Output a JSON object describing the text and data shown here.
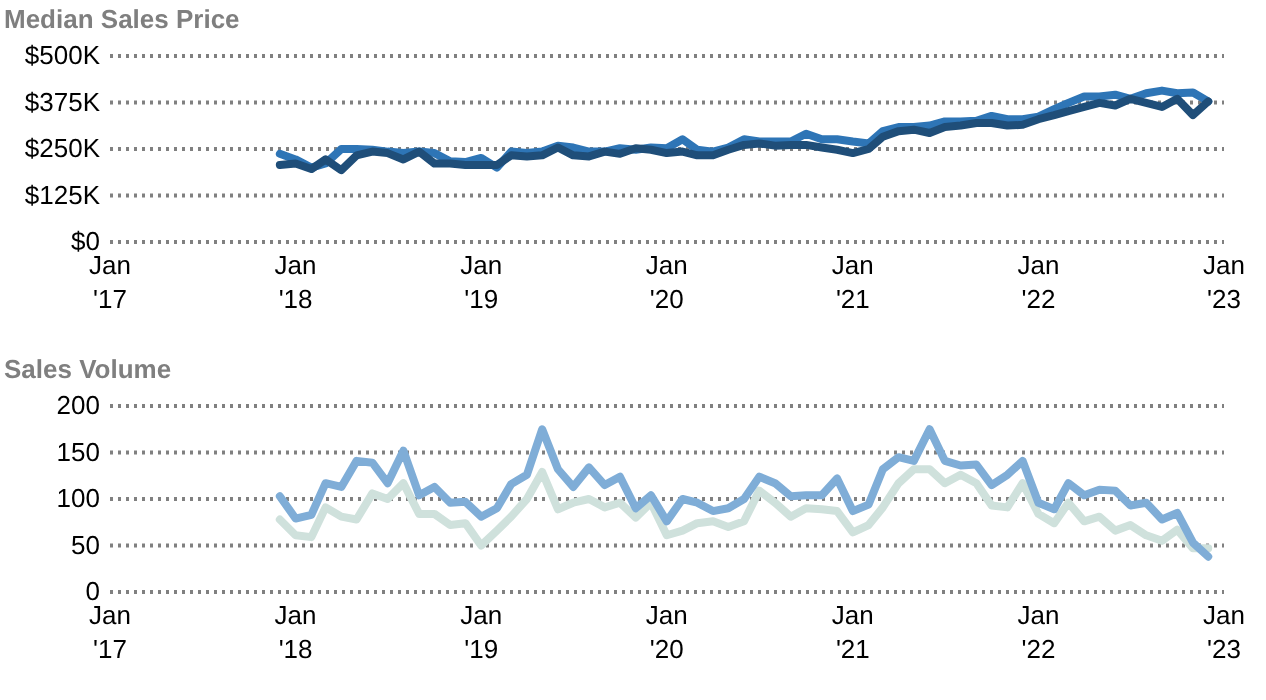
{
  "chart_data": [
    {
      "type": "line",
      "title": "Median Sales Price",
      "grid": "y",
      "x": [
        "2017-12",
        "2018-01",
        "2018-02",
        "2018-03",
        "2018-04",
        "2018-05",
        "2018-06",
        "2018-07",
        "2018-08",
        "2018-09",
        "2018-10",
        "2018-11",
        "2018-12",
        "2019-01",
        "2019-02",
        "2019-03",
        "2019-04",
        "2019-05",
        "2019-06",
        "2019-07",
        "2019-08",
        "2019-09",
        "2019-10",
        "2019-11",
        "2019-12",
        "2020-01",
        "2020-02",
        "2020-03",
        "2020-04",
        "2020-05",
        "2020-06",
        "2020-07",
        "2020-08",
        "2020-09",
        "2020-10",
        "2020-11",
        "2020-12",
        "2021-01",
        "2021-02",
        "2021-03",
        "2021-04",
        "2021-05",
        "2021-06",
        "2021-07",
        "2021-08",
        "2021-09",
        "2021-10",
        "2021-11",
        "2021-12",
        "2022-01",
        "2022-02",
        "2022-03",
        "2022-04",
        "2022-05",
        "2022-06",
        "2022-07",
        "2022-08",
        "2022-09",
        "2022-10",
        "2022-11",
        "2022-12"
      ],
      "series": [
        {
          "color": "#2e75b6",
          "values": [
            237,
            222,
            200,
            211,
            250,
            250,
            248,
            243,
            239,
            243,
            239,
            217,
            215,
            226,
            200,
            243,
            239,
            243,
            259,
            254,
            243,
            243,
            252,
            248,
            254,
            252,
            276,
            248,
            243,
            254,
            276,
            270,
            270,
            270,
            291,
            276,
            276,
            270,
            265,
            298,
            309,
            309,
            313,
            324,
            324,
            326,
            339,
            330,
            330,
            337,
            357,
            374,
            391,
            391,
            396,
            385,
            400,
            407,
            400,
            402,
            378
          ]
        },
        {
          "color": "#1f4e79",
          "values": [
            207,
            211,
            196,
            222,
            193,
            233,
            243,
            239,
            222,
            243,
            211,
            211,
            207,
            207,
            207,
            233,
            230,
            233,
            254,
            233,
            230,
            243,
            237,
            252,
            248,
            239,
            243,
            233,
            233,
            248,
            261,
            265,
            259,
            261,
            261,
            254,
            248,
            239,
            250,
            283,
            298,
            302,
            293,
            309,
            313,
            320,
            320,
            313,
            315,
            330,
            341,
            352,
            363,
            374,
            367,
            385,
            374,
            363,
            385,
            341,
            378
          ]
        }
      ],
      "xlim": [
        "2017-01",
        "2023-01"
      ],
      "xticks": [
        {
          "value": "2017-01",
          "label": "Jan\n'17"
        },
        {
          "value": "2018-01",
          "label": "Jan\n'18"
        },
        {
          "value": "2019-01",
          "label": "Jan\n'19"
        },
        {
          "value": "2020-01",
          "label": "Jan\n'20"
        },
        {
          "value": "2021-01",
          "label": "Jan\n'21"
        },
        {
          "value": "2022-01",
          "label": "Jan\n'22"
        },
        {
          "value": "2023-01",
          "label": "Jan\n'23"
        }
      ],
      "ylim": [
        0,
        500
      ],
      "yticks": [
        {
          "value": 0,
          "label": "$0"
        },
        {
          "value": 125,
          "label": "$125K"
        },
        {
          "value": 250,
          "label": "$250K"
        },
        {
          "value": 375,
          "label": "$375K"
        },
        {
          "value": 500,
          "label": "$500K"
        }
      ]
    },
    {
      "type": "line",
      "title": "Sales Volume",
      "grid": "y",
      "x": [
        "2017-12",
        "2018-01",
        "2018-02",
        "2018-03",
        "2018-04",
        "2018-05",
        "2018-06",
        "2018-07",
        "2018-08",
        "2018-09",
        "2018-10",
        "2018-11",
        "2018-12",
        "2019-01",
        "2019-02",
        "2019-03",
        "2019-04",
        "2019-05",
        "2019-06",
        "2019-07",
        "2019-08",
        "2019-09",
        "2019-10",
        "2019-11",
        "2019-12",
        "2020-01",
        "2020-02",
        "2020-03",
        "2020-04",
        "2020-05",
        "2020-06",
        "2020-07",
        "2020-08",
        "2020-09",
        "2020-10",
        "2020-11",
        "2020-12",
        "2021-01",
        "2021-02",
        "2021-03",
        "2021-04",
        "2021-05",
        "2021-06",
        "2021-07",
        "2021-08",
        "2021-09",
        "2021-10",
        "2021-11",
        "2021-12",
        "2022-01",
        "2022-02",
        "2022-03",
        "2022-04",
        "2022-05",
        "2022-06",
        "2022-07",
        "2022-08",
        "2022-09",
        "2022-10",
        "2022-11",
        "2022-12"
      ],
      "series": [
        {
          "color": "#cfe1dc",
          "values": [
            78,
            61,
            59,
            91,
            81,
            78,
            106,
            100,
            117,
            84,
            84,
            72,
            74,
            50,
            66,
            81,
            100,
            129,
            89,
            96,
            100,
            91,
            96,
            80,
            96,
            61,
            66,
            74,
            76,
            70,
            76,
            109,
            96,
            81,
            90,
            89,
            87,
            64,
            72,
            91,
            117,
            132,
            132,
            117,
            126,
            117,
            93,
            91,
            117,
            84,
            74,
            96,
            76,
            81,
            66,
            72,
            61,
            55,
            67,
            47,
            47
          ]
        },
        {
          "color": "#7fadd7",
          "values": [
            103,
            79,
            83,
            117,
            113,
            141,
            139,
            117,
            152,
            104,
            113,
            96,
            97,
            81,
            90,
            116,
            126,
            175,
            132,
            113,
            134,
            115,
            124,
            90,
            104,
            76,
            100,
            96,
            87,
            90,
            100,
            124,
            117,
            103,
            104,
            104,
            122,
            87,
            94,
            132,
            145,
            141,
            175,
            141,
            136,
            137,
            115,
            126,
            141,
            96,
            89,
            117,
            104,
            110,
            109,
            93,
            96,
            78,
            85,
            53,
            38
          ]
        }
      ],
      "xlim": [
        "2017-01",
        "2023-01"
      ],
      "xticks": [
        {
          "value": "2017-01",
          "label": "Jan\n'17"
        },
        {
          "value": "2018-01",
          "label": "Jan\n'18"
        },
        {
          "value": "2019-01",
          "label": "Jan\n'19"
        },
        {
          "value": "2020-01",
          "label": "Jan\n'20"
        },
        {
          "value": "2021-01",
          "label": "Jan\n'21"
        },
        {
          "value": "2022-01",
          "label": "Jan\n'22"
        },
        {
          "value": "2023-01",
          "label": "Jan\n'23"
        }
      ],
      "ylim": [
        0,
        200
      ],
      "yticks": [
        0,
        50,
        100,
        150,
        200
      ]
    }
  ]
}
